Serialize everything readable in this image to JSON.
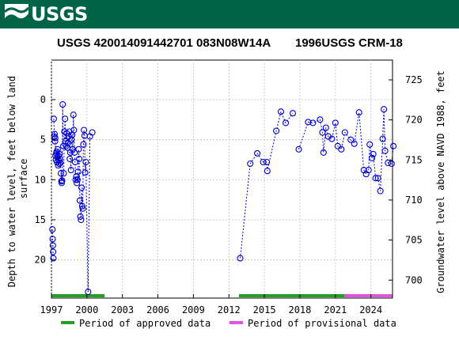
{
  "header": {
    "logo_text": "USGS",
    "brand_color": "#006546"
  },
  "chart_data": {
    "type": "scatter",
    "title_left": "USGS 420014091442701 083N08W14A",
    "title_right": "1996USGS CRM-18",
    "ylabel_left": "Depth to water level, feet below land surface",
    "ylabel_right": "Groundwater level above NAVD 1988, feet",
    "x_ticks": [
      "1997",
      "2000",
      "2003",
      "2006",
      "2009",
      "2012",
      "2015",
      "2018",
      "2021",
      "2024"
    ],
    "x_range": [
      1997.0,
      2025.2
    ],
    "y_left_ticks": [
      0,
      5,
      10,
      15,
      20
    ],
    "y_left_range": [
      24.6,
      -4.4
    ],
    "y_right_ticks": [
      700,
      705,
      710,
      715,
      720,
      725
    ],
    "series_color": "#0000cc",
    "points": [
      [
        1997.08,
        16.2
      ],
      [
        1997.1,
        17.4
      ],
      [
        1997.12,
        18.2
      ],
      [
        1997.14,
        19.0
      ],
      [
        1997.16,
        19.8
      ],
      [
        1997.2,
        2.4
      ],
      [
        1997.24,
        4.6
      ],
      [
        1997.27,
        4.3
      ],
      [
        1997.3,
        5.2
      ],
      [
        1997.32,
        4.8
      ],
      [
        1997.35,
        7.0
      ],
      [
        1997.38,
        7.5
      ],
      [
        1997.41,
        6.7
      ],
      [
        1997.44,
        6.5
      ],
      [
        1997.47,
        7.8
      ],
      [
        1997.5,
        7.2
      ],
      [
        1997.53,
        6.2
      ],
      [
        1997.56,
        8.2
      ],
      [
        1997.59,
        7.0
      ],
      [
        1997.62,
        7.6
      ],
      [
        1997.65,
        8.0
      ],
      [
        1997.68,
        6.8
      ],
      [
        1997.72,
        7.4
      ],
      [
        1997.76,
        7.9
      ],
      [
        1997.8,
        9.2
      ],
      [
        1997.84,
        10.2
      ],
      [
        1997.87,
        10.4
      ],
      [
        1997.9,
        10.1
      ],
      [
        1997.95,
        0.6
      ],
      [
        1998.0,
        5.8
      ],
      [
        1998.04,
        9.2
      ],
      [
        1998.1,
        4.0
      ],
      [
        1998.15,
        2.4
      ],
      [
        1998.2,
        5.2
      ],
      [
        1998.25,
        5.8
      ],
      [
        1998.3,
        4.2
      ],
      [
        1998.35,
        6.0
      ],
      [
        1998.4,
        5.4
      ],
      [
        1998.45,
        4.6
      ],
      [
        1998.5,
        4.0
      ],
      [
        1998.55,
        7.4
      ],
      [
        1998.6,
        6.6
      ],
      [
        1998.65,
        8.8
      ],
      [
        1998.7,
        5.0
      ],
      [
        1998.75,
        4.4
      ],
      [
        1998.8,
        6.2
      ],
      [
        1998.85,
        1.9
      ],
      [
        1998.9,
        3.8
      ],
      [
        1998.95,
        6.6
      ],
      [
        1999.0,
        7.8
      ],
      [
        1999.05,
        10.0
      ],
      [
        1999.1,
        9.6
      ],
      [
        1999.15,
        10.4
      ],
      [
        1999.2,
        10.0
      ],
      [
        1999.25,
        9.0
      ],
      [
        1999.3,
        6.2
      ],
      [
        1999.35,
        7.4
      ],
      [
        1999.4,
        12.6
      ],
      [
        1999.45,
        14.6
      ],
      [
        1999.5,
        15.0
      ],
      [
        1999.55,
        11.0
      ],
      [
        1999.6,
        13.3
      ],
      [
        1999.65,
        13.6
      ],
      [
        1999.7,
        5.6
      ],
      [
        1999.75,
        3.8
      ],
      [
        1999.8,
        4.5
      ],
      [
        1999.85,
        9.1
      ],
      [
        1999.9,
        7.8
      ],
      [
        2000.1,
        24.0
      ],
      [
        2000.25,
        4.6
      ],
      [
        2000.45,
        4.1
      ],
      [
        2012.95,
        19.8
      ],
      [
        2013.8,
        8.0
      ],
      [
        2014.4,
        6.7
      ],
      [
        2014.9,
        7.8
      ],
      [
        2015.2,
        7.8
      ],
      [
        2015.25,
        8.9
      ],
      [
        2016.0,
        3.9
      ],
      [
        2016.4,
        1.5
      ],
      [
        2016.8,
        2.9
      ],
      [
        2017.4,
        1.7
      ],
      [
        2017.9,
        6.2
      ],
      [
        2018.7,
        2.8
      ],
      [
        2019.1,
        2.9
      ],
      [
        2019.7,
        2.5
      ],
      [
        2019.9,
        4.1
      ],
      [
        2020.0,
        6.6
      ],
      [
        2020.2,
        3.5
      ],
      [
        2020.4,
        4.6
      ],
      [
        2020.7,
        4.9
      ],
      [
        2021.0,
        2.9
      ],
      [
        2021.2,
        5.8
      ],
      [
        2021.5,
        6.2
      ],
      [
        2021.8,
        4.1
      ],
      [
        2022.3,
        5.0
      ],
      [
        2022.6,
        5.5
      ],
      [
        2023.0,
        1.6
      ],
      [
        2023.4,
        8.8
      ],
      [
        2023.6,
        9.3
      ],
      [
        2023.8,
        8.8
      ],
      [
        2023.9,
        5.6
      ],
      [
        2024.1,
        7.3
      ],
      [
        2024.2,
        6.8
      ],
      [
        2024.4,
        9.8
      ],
      [
        2024.6,
        9.8
      ],
      [
        2024.8,
        11.4
      ],
      [
        2025.0,
        4.9
      ],
      [
        2025.1,
        1.2
      ],
      [
        2025.2,
        6.4
      ],
      [
        2025.45,
        7.9
      ],
      [
        2025.75,
        8.0
      ],
      [
        2025.9,
        5.8
      ]
    ],
    "segments": [
      [
        1997.08,
        1997.16
      ],
      [
        1997.2,
        1998.0
      ],
      [
        1998.04,
        2000.45
      ],
      [
        2012.95,
        2017.4
      ],
      [
        2017.9,
        2025.9
      ]
    ],
    "periods": [
      {
        "status": "approved",
        "start": 1997.0,
        "end": 2001.5,
        "color": "#22a022"
      },
      {
        "status": "approved",
        "start": 2012.85,
        "end": 2021.75,
        "color": "#22a022"
      },
      {
        "status": "provisional",
        "start": 2021.75,
        "end": 2025.8,
        "color": "#e055e0"
      }
    ],
    "legend": [
      {
        "label": "Period of approved data",
        "color": "#22a022"
      },
      {
        "label": "Period of provisional data",
        "color": "#e055e0"
      }
    ]
  }
}
